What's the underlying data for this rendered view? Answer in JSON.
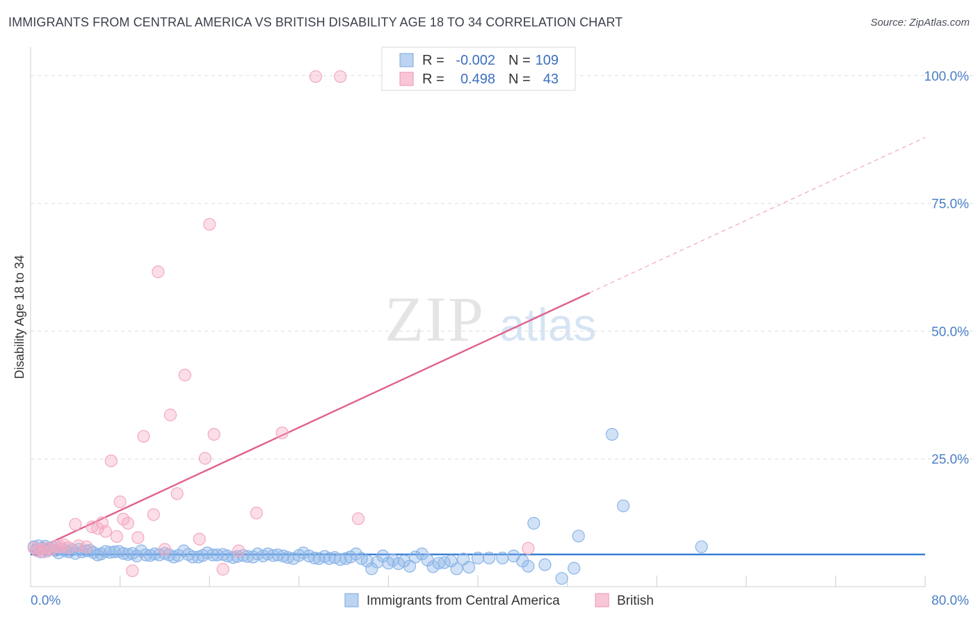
{
  "header": {
    "title": "IMMIGRANTS FROM CENTRAL AMERICA VS BRITISH DISABILITY AGE 18 TO 34 CORRELATION CHART",
    "source": "Source: ZipAtlas.com"
  },
  "watermark": {
    "zip": "ZIP",
    "atlas": "atlas"
  },
  "chart_data": {
    "type": "scatter",
    "title": "IMMIGRANTS FROM CENTRAL AMERICA VS BRITISH DISABILITY AGE 18 TO 34 CORRELATION CHART",
    "xlabel": "",
    "ylabel": "Disability Age 18 to 34",
    "xlim": [
      0,
      80
    ],
    "ylim": [
      0,
      105
    ],
    "x_tick_labels": [
      "0.0%",
      "80.0%"
    ],
    "y_ticks": [
      25,
      50,
      75,
      100
    ],
    "y_tick_labels": [
      "25.0%",
      "50.0%",
      "75.0%",
      "100.0%"
    ],
    "grid": true,
    "legend_stats": [
      {
        "r_label": "R =",
        "r_value": "-0.002",
        "n_label": "N =",
        "n_value": "109"
      },
      {
        "r_label": "R =",
        "r_value": "0.498",
        "n_label": "N =",
        "n_value": "43"
      }
    ],
    "series": [
      {
        "name": "Immigrants from Central America",
        "color": "#8ab4e8",
        "line_color": "#2f78d0",
        "trend": {
          "x0": 0,
          "y0": 6.3,
          "x1": 80,
          "y1": 6.3,
          "dashed_to": null
        },
        "points": [
          [
            0.3,
            7.8
          ],
          [
            0.5,
            7.2
          ],
          [
            0.7,
            8.0
          ],
          [
            0.9,
            6.8
          ],
          [
            1.1,
            7.5
          ],
          [
            1.3,
            7.9
          ],
          [
            1.5,
            7.0
          ],
          [
            1.8,
            7.4
          ],
          [
            2.0,
            7.7
          ],
          [
            2.2,
            7.1
          ],
          [
            2.5,
            6.6
          ],
          [
            2.8,
            7.3
          ],
          [
            3.1,
            7.0
          ],
          [
            3.4,
            6.8
          ],
          [
            3.7,
            7.2
          ],
          [
            4.0,
            6.5
          ],
          [
            4.3,
            7.3
          ],
          [
            4.6,
            6.8
          ],
          [
            5.0,
            7.0
          ],
          [
            5.3,
            7.1
          ],
          [
            5.6,
            6.7
          ],
          [
            6.0,
            6.2
          ],
          [
            6.3,
            6.4
          ],
          [
            6.7,
            6.9
          ],
          [
            7.1,
            6.7
          ],
          [
            7.5,
            6.8
          ],
          [
            7.9,
            6.9
          ],
          [
            8.3,
            6.5
          ],
          [
            8.7,
            6.3
          ],
          [
            9.1,
            6.5
          ],
          [
            9.5,
            6.0
          ],
          [
            9.9,
            7.0
          ],
          [
            10.3,
            6.2
          ],
          [
            10.7,
            6.1
          ],
          [
            11.1,
            6.4
          ],
          [
            11.5,
            6.2
          ],
          [
            12.0,
            6.5
          ],
          [
            12.4,
            6.2
          ],
          [
            12.8,
            5.8
          ],
          [
            13.2,
            6.1
          ],
          [
            13.7,
            7.0
          ],
          [
            14.1,
            6.3
          ],
          [
            14.5,
            5.8
          ],
          [
            15.0,
            5.8
          ],
          [
            15.4,
            6.1
          ],
          [
            15.8,
            6.6
          ],
          [
            16.3,
            6.2
          ],
          [
            16.7,
            6.2
          ],
          [
            17.2,
            6.3
          ],
          [
            17.6,
            6.0
          ],
          [
            18.1,
            5.7
          ],
          [
            18.5,
            5.9
          ],
          [
            19.0,
            6.1
          ],
          [
            19.4,
            5.9
          ],
          [
            19.9,
            5.8
          ],
          [
            20.3,
            6.4
          ],
          [
            20.8,
            6.0
          ],
          [
            21.2,
            6.4
          ],
          [
            21.7,
            6.1
          ],
          [
            22.1,
            6.2
          ],
          [
            22.6,
            6.0
          ],
          [
            23.0,
            5.7
          ],
          [
            23.5,
            5.5
          ],
          [
            24.0,
            6.1
          ],
          [
            24.4,
            6.6
          ],
          [
            24.9,
            6.0
          ],
          [
            25.4,
            5.6
          ],
          [
            25.8,
            5.5
          ],
          [
            26.3,
            5.9
          ],
          [
            26.7,
            5.5
          ],
          [
            27.2,
            5.7
          ],
          [
            27.7,
            5.3
          ],
          [
            28.2,
            5.5
          ],
          [
            28.6,
            5.8
          ],
          [
            29.1,
            6.4
          ],
          [
            29.6,
            5.5
          ],
          [
            30.1,
            5.0
          ],
          [
            30.5,
            3.5
          ],
          [
            31.0,
            4.8
          ],
          [
            31.5,
            6.0
          ],
          [
            32.0,
            4.6
          ],
          [
            32.4,
            5.2
          ],
          [
            32.9,
            4.5
          ],
          [
            33.4,
            5.0
          ],
          [
            33.9,
            4.0
          ],
          [
            34.4,
            5.8
          ],
          [
            35.0,
            6.4
          ],
          [
            35.5,
            5.2
          ],
          [
            36.0,
            3.9
          ],
          [
            36.5,
            4.6
          ],
          [
            37.0,
            4.7
          ],
          [
            37.6,
            5.0
          ],
          [
            38.1,
            3.5
          ],
          [
            38.7,
            5.4
          ],
          [
            39.2,
            3.8
          ],
          [
            40.0,
            5.6
          ],
          [
            41.0,
            5.6
          ],
          [
            42.2,
            5.6
          ],
          [
            43.2,
            6.0
          ],
          [
            44.0,
            5.0
          ],
          [
            44.5,
            4.0
          ],
          [
            45.0,
            12.4
          ],
          [
            46.0,
            4.3
          ],
          [
            47.5,
            1.6
          ],
          [
            48.6,
            3.6
          ],
          [
            49.0,
            9.9
          ],
          [
            52.0,
            29.8
          ],
          [
            53.0,
            15.8
          ],
          [
            60.0,
            7.8
          ]
        ]
      },
      {
        "name": "British",
        "color": "#f4a8c0",
        "line_color": "#e0608e",
        "trend": {
          "x0": 0,
          "y0": 6.8,
          "x1": 50,
          "y1": 57.5,
          "dashed_to": [
            80,
            87.9
          ]
        },
        "points": [
          [
            0.3,
            7.6
          ],
          [
            0.6,
            7.0
          ],
          [
            0.9,
            7.3
          ],
          [
            1.2,
            6.8
          ],
          [
            1.5,
            7.5
          ],
          [
            1.9,
            7.3
          ],
          [
            2.3,
            7.9
          ],
          [
            2.7,
            7.8
          ],
          [
            3.0,
            8.2
          ],
          [
            3.4,
            7.6
          ],
          [
            4.0,
            12.2
          ],
          [
            4.3,
            8.0
          ],
          [
            5.0,
            7.8
          ],
          [
            5.5,
            11.7
          ],
          [
            6.0,
            11.4
          ],
          [
            6.4,
            12.5
          ],
          [
            6.7,
            10.8
          ],
          [
            7.2,
            24.6
          ],
          [
            7.7,
            9.8
          ],
          [
            8.0,
            16.6
          ],
          [
            8.3,
            13.2
          ],
          [
            8.7,
            12.4
          ],
          [
            9.1,
            3.1
          ],
          [
            9.6,
            9.6
          ],
          [
            10.1,
            29.4
          ],
          [
            11.0,
            14.1
          ],
          [
            11.4,
            61.6
          ],
          [
            12.0,
            7.3
          ],
          [
            12.5,
            33.6
          ],
          [
            13.1,
            18.2
          ],
          [
            13.8,
            41.4
          ],
          [
            15.1,
            9.3
          ],
          [
            15.6,
            25.1
          ],
          [
            16.0,
            70.9
          ],
          [
            16.4,
            29.8
          ],
          [
            17.2,
            3.4
          ],
          [
            18.6,
            7.0
          ],
          [
            20.2,
            14.4
          ],
          [
            22.5,
            30.1
          ],
          [
            25.5,
            99.8
          ],
          [
            27.7,
            99.8
          ],
          [
            29.3,
            13.3
          ],
          [
            44.5,
            7.5
          ]
        ]
      }
    ]
  },
  "legend_bottom": [
    "Immigrants from Central America",
    "British"
  ]
}
